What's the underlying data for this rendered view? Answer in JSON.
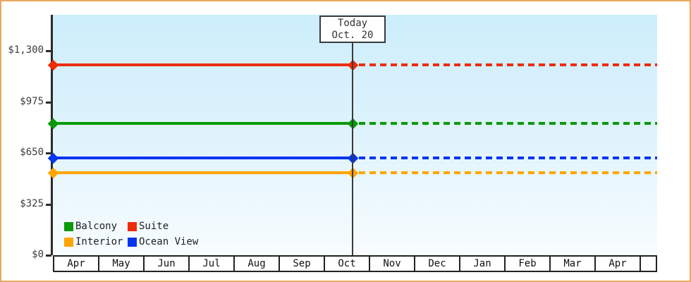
{
  "window": {
    "border_color": "#e8a85f",
    "background": "#ffffff"
  },
  "chart_data": {
    "type": "line",
    "title": "",
    "xlabel": "",
    "ylabel": "",
    "x_categories": [
      "Apr",
      "May",
      "Jun",
      "Jul",
      "Aug",
      "Sep",
      "Oct",
      "Nov",
      "Dec",
      "Jan",
      "Feb",
      "Mar",
      "Apr"
    ],
    "y_ticks": [
      {
        "label": "$0",
        "value": 0
      },
      {
        "label": "$325",
        "value": 325
      },
      {
        "label": "$650",
        "value": 650
      },
      {
        "label": "$975",
        "value": 975
      },
      {
        "label": "$1,300",
        "value": 1300
      }
    ],
    "ylim": [
      0,
      1530
    ],
    "grid": false,
    "plot_background_top": "#cceefb",
    "plot_background_bottom": "#f7fcff",
    "series": [
      {
        "name": "Suite",
        "color": "#ee2c08",
        "value": 1210
      },
      {
        "name": "Balcony",
        "color": "#0a9a0a",
        "value": 840
      },
      {
        "name": "Ocean View",
        "color": "#0435f0",
        "value": 620
      },
      {
        "name": "Interior",
        "color": "#ffa502",
        "value": 525
      }
    ],
    "legend_order": [
      "Balcony",
      "Suite",
      "Interior",
      "Ocean View"
    ],
    "legend_position": "bottom-left-inside",
    "today": {
      "line1": "Today",
      "line2": "Oct. 20",
      "month": "Oct",
      "day": 20
    },
    "line_style": {
      "solid_before_today": true,
      "dashed_after_today": true,
      "marker": "diamond"
    }
  }
}
